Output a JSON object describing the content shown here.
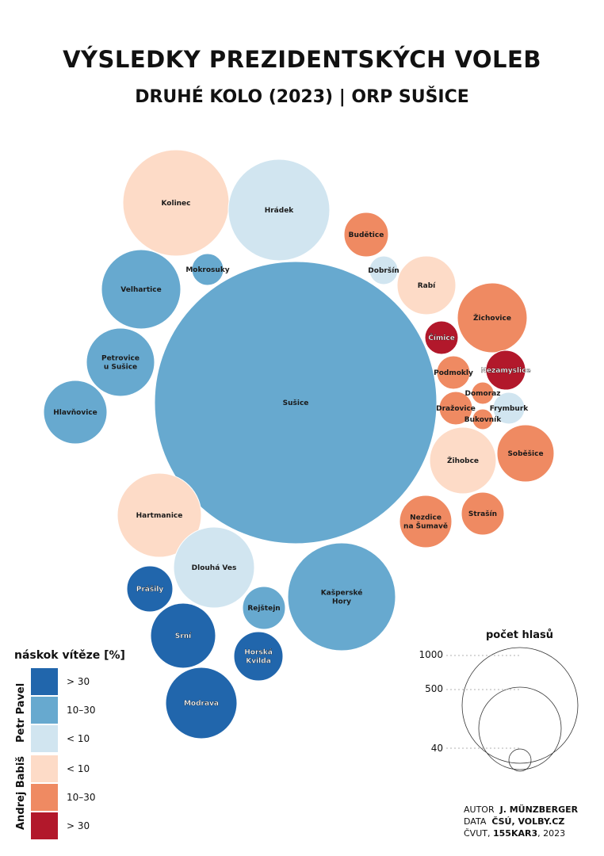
{
  "title": "VÝSLEDKY PREZIDENTSKÝCH VOLEB",
  "subtitle": "DRUHÉ KOLO (2023) | ORP SUŠICE",
  "colors": {
    "pavel_gt30": "#2166ac",
    "pavel_10_30": "#67a9cf",
    "pavel_lt10": "#d1e5f0",
    "babis_lt10": "#fddbc7",
    "babis_10_30": "#ef8a62",
    "babis_gt30": "#b2182b"
  },
  "chart_data": {
    "type": "bubble",
    "size_measure": "počet hlasů",
    "color_measure": "náskok vítěze [%]",
    "items": [
      {
        "name": "Sušice",
        "category": "pavel_10_30"
      },
      {
        "name": "Kolinec",
        "category": "babis_lt10"
      },
      {
        "name": "Hrádek",
        "category": "pavel_lt10"
      },
      {
        "name": "Mokrosuky",
        "category": "pavel_10_30"
      },
      {
        "name": "Velhartice",
        "category": "pavel_10_30"
      },
      {
        "name": "Petrovice u Sušice",
        "category": "pavel_10_30"
      },
      {
        "name": "Hlavňovice",
        "category": "pavel_10_30"
      },
      {
        "name": "Budětice",
        "category": "babis_10_30"
      },
      {
        "name": "Dobršín",
        "category": "pavel_lt10"
      },
      {
        "name": "Rabí",
        "category": "babis_lt10"
      },
      {
        "name": "Žichovice",
        "category": "babis_10_30"
      },
      {
        "name": "Čímice",
        "category": "babis_gt30"
      },
      {
        "name": "Nezamyslice",
        "category": "babis_gt30"
      },
      {
        "name": "Podmokly",
        "category": "babis_10_30"
      },
      {
        "name": "Domoraz",
        "category": "babis_10_30"
      },
      {
        "name": "Dražovice",
        "category": "babis_10_30"
      },
      {
        "name": "Frymburk",
        "category": "pavel_lt10"
      },
      {
        "name": "Bukovník",
        "category": "babis_10_30"
      },
      {
        "name": "Žihobce",
        "category": "babis_lt10"
      },
      {
        "name": "Soběšice",
        "category": "babis_10_30"
      },
      {
        "name": "Strašín",
        "category": "babis_10_30"
      },
      {
        "name": "Nezdice na Šumavě",
        "category": "babis_10_30"
      },
      {
        "name": "Hartmanice",
        "category": "babis_lt10"
      },
      {
        "name": "Dlouhá Ves",
        "category": "pavel_lt10"
      },
      {
        "name": "Kašperské Hory",
        "category": "pavel_10_30"
      },
      {
        "name": "Prášily",
        "category": "pavel_gt30"
      },
      {
        "name": "Rejštejn",
        "category": "pavel_10_30"
      },
      {
        "name": "Srní",
        "category": "pavel_gt30"
      },
      {
        "name": "Horská Kvilda",
        "category": "pavel_gt30"
      },
      {
        "name": "Modrava",
        "category": "pavel_gt30"
      }
    ]
  },
  "legend": {
    "title": "náskok vítěze [%]",
    "candidate_1": "Petr Pavel",
    "candidate_2": "Andrej Babiš",
    "items": [
      {
        "label": "> 30",
        "color": "#2166ac"
      },
      {
        "label": "10–30",
        "color": "#67a9cf"
      },
      {
        "label": "< 10",
        "color": "#d1e5f0"
      },
      {
        "label": "< 10",
        "color": "#fddbc7"
      },
      {
        "label": "10–30",
        "color": "#ef8a62"
      },
      {
        "label": "> 30",
        "color": "#b2182b"
      }
    ]
  },
  "size_legend": {
    "title": "počet hlasů",
    "ticks": [
      "1000",
      "500",
      "40"
    ]
  },
  "credits": {
    "author_label": "AUTOR",
    "author": "J. MÜNZBERGER",
    "data_label": "DATA",
    "data": "ČSÚ, VOLBY.CZ",
    "org": "ČVUT,",
    "course": "155KAR3",
    "year": ", 2023"
  }
}
